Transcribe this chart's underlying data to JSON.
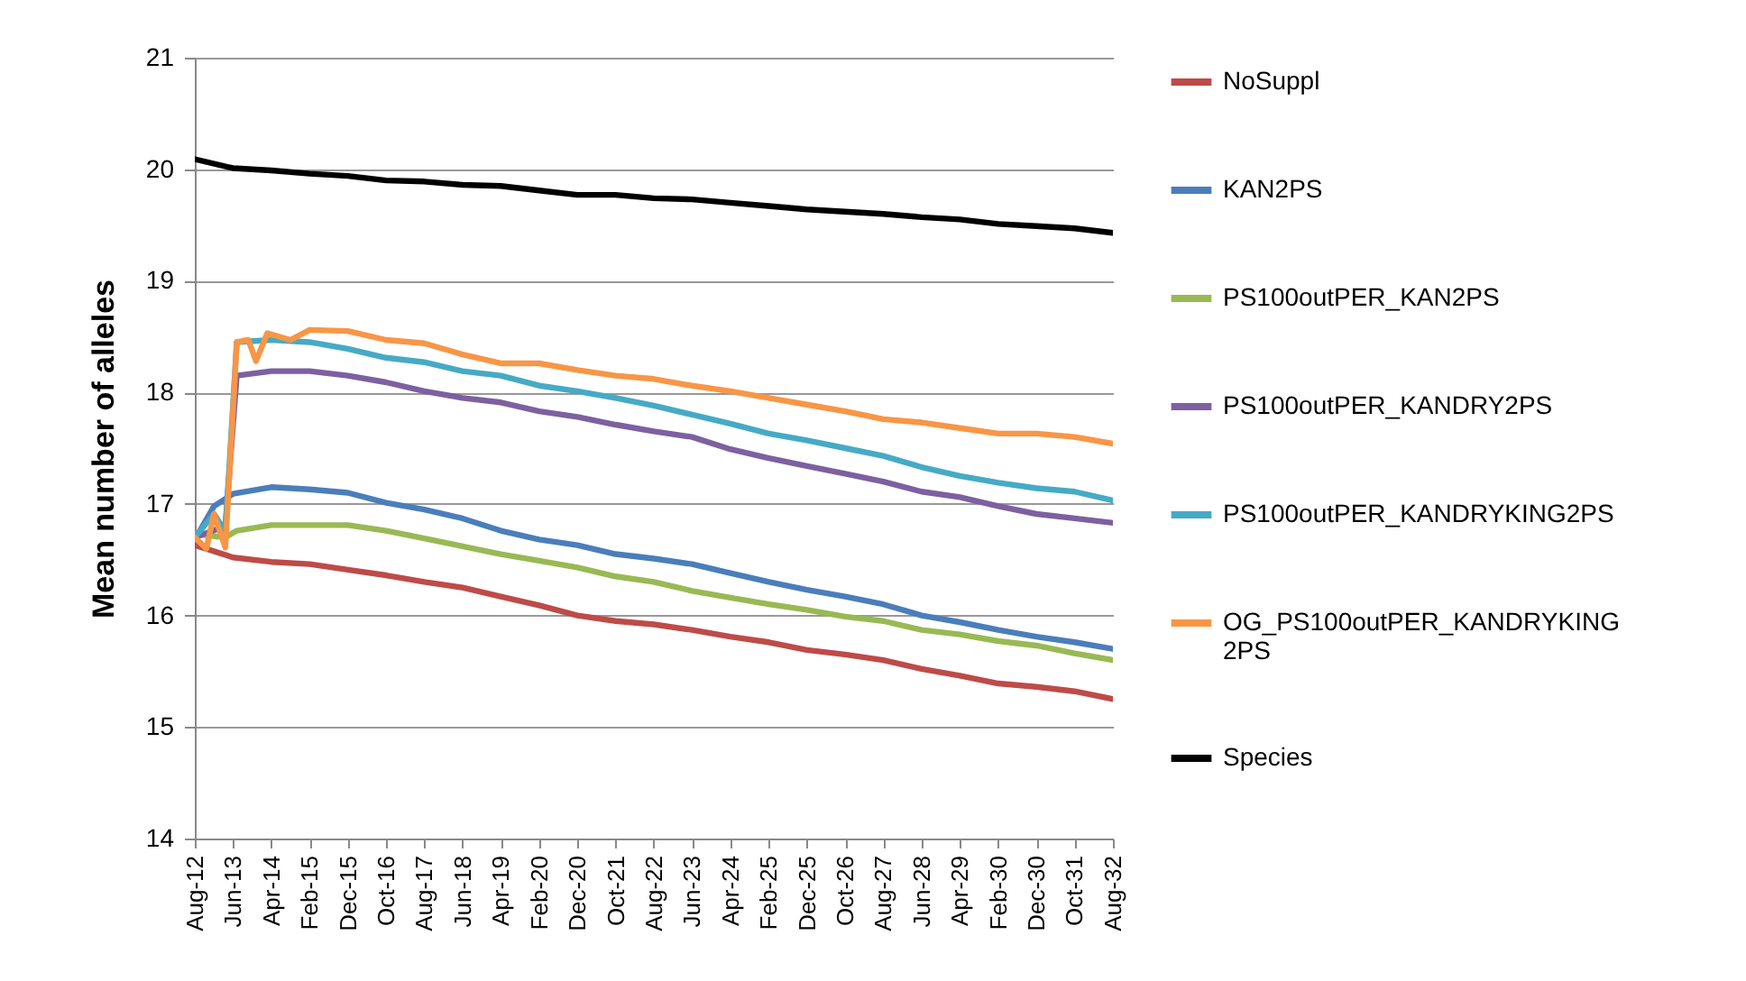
{
  "chart_data": {
    "type": "line",
    "ylabel": "Mean number of alleles",
    "ylim": [
      14,
      21
    ],
    "yticks": [
      14,
      15,
      16,
      17,
      18,
      19,
      20,
      21
    ],
    "xlim": [
      "2012-08",
      "2032-08"
    ],
    "xticks": [
      {
        "value": "2012-08",
        "label": "Aug-12"
      },
      {
        "value": "2013-06",
        "label": "Jun-13"
      },
      {
        "value": "2014-04",
        "label": "Apr-14"
      },
      {
        "value": "2015-02",
        "label": "Feb-15"
      },
      {
        "value": "2015-12",
        "label": "Dec-15"
      },
      {
        "value": "2016-10",
        "label": "Oct-16"
      },
      {
        "value": "2017-08",
        "label": "Aug-17"
      },
      {
        "value": "2018-06",
        "label": "Jun-18"
      },
      {
        "value": "2019-04",
        "label": "Apr-19"
      },
      {
        "value": "2020-02",
        "label": "Feb-20"
      },
      {
        "value": "2020-12",
        "label": "Dec-20"
      },
      {
        "value": "2021-10",
        "label": "Oct-21"
      },
      {
        "value": "2022-08",
        "label": "Aug-22"
      },
      {
        "value": "2023-06",
        "label": "Jun-23"
      },
      {
        "value": "2024-04",
        "label": "Apr-24"
      },
      {
        "value": "2025-02",
        "label": "Feb-25"
      },
      {
        "value": "2025-12",
        "label": "Dec-25"
      },
      {
        "value": "2026-10",
        "label": "Oct-26"
      },
      {
        "value": "2027-08",
        "label": "Aug-27"
      },
      {
        "value": "2028-06",
        "label": "Jun-28"
      },
      {
        "value": "2029-04",
        "label": "Apr-29"
      },
      {
        "value": "2030-02",
        "label": "Feb-30"
      },
      {
        "value": "2030-12",
        "label": "Dec-30"
      },
      {
        "value": "2031-10",
        "label": "Oct-31"
      },
      {
        "value": "2032-08",
        "label": "Aug-32"
      }
    ],
    "grid": "y",
    "legend": "right",
    "line_style": "solid",
    "series": [
      {
        "name": "NoSuppl",
        "color": "#be4b48",
        "x": [
          "2012-08",
          "2013-06",
          "2014-04",
          "2015-02",
          "2015-12",
          "2016-10",
          "2017-08",
          "2018-06",
          "2019-04",
          "2020-02",
          "2020-12",
          "2021-10",
          "2022-08",
          "2023-06",
          "2024-04",
          "2025-02",
          "2025-12",
          "2026-10",
          "2027-08",
          "2028-06",
          "2029-04",
          "2030-02",
          "2030-12",
          "2031-10",
          "2032-08"
        ],
        "values": [
          16.63,
          16.52,
          16.48,
          16.46,
          16.41,
          16.36,
          16.3,
          16.25,
          16.17,
          16.09,
          16.0,
          15.95,
          15.92,
          15.87,
          15.81,
          15.76,
          15.69,
          15.65,
          15.6,
          15.52,
          15.46,
          15.39,
          15.36,
          15.32,
          15.25
        ]
      },
      {
        "name": "KAN2PS",
        "color": "#4a7ebb",
        "x": [
          "2012-08",
          "2013-01",
          "2013-06",
          "2014-04",
          "2015-02",
          "2015-12",
          "2016-10",
          "2017-08",
          "2018-06",
          "2019-04",
          "2020-02",
          "2020-12",
          "2021-10",
          "2022-08",
          "2023-06",
          "2024-04",
          "2025-02",
          "2025-12",
          "2026-10",
          "2027-08",
          "2028-06",
          "2029-04",
          "2030-02",
          "2030-12",
          "2031-10",
          "2032-08"
        ],
        "values": [
          16.68,
          16.98,
          17.09,
          17.15,
          17.13,
          17.1,
          17.01,
          16.95,
          16.87,
          16.76,
          16.68,
          16.63,
          16.55,
          16.51,
          16.46,
          16.38,
          16.3,
          16.23,
          16.17,
          16.1,
          16.0,
          15.94,
          15.87,
          15.81,
          15.76,
          15.7
        ]
      },
      {
        "name": "PS100outPER_KAN2PS",
        "color": "#98b954",
        "x": [
          "2012-08",
          "2013-04",
          "2013-07",
          "2014-04",
          "2015-02",
          "2015-12",
          "2016-10",
          "2017-08",
          "2018-06",
          "2019-04",
          "2020-02",
          "2020-12",
          "2021-10",
          "2022-08",
          "2023-06",
          "2024-04",
          "2025-02",
          "2025-12",
          "2026-10",
          "2027-08",
          "2028-06",
          "2029-04",
          "2030-02",
          "2030-12",
          "2031-10",
          "2032-08"
        ],
        "values": [
          16.73,
          16.7,
          16.76,
          16.81,
          16.81,
          16.81,
          16.76,
          16.69,
          16.62,
          16.55,
          16.49,
          16.43,
          16.35,
          16.3,
          16.22,
          16.16,
          16.1,
          16.05,
          15.99,
          15.95,
          15.87,
          15.83,
          15.77,
          15.73,
          15.66,
          15.6
        ]
      },
      {
        "name": "PS100outPER_KANDRY2PS",
        "color": "#7d60a0",
        "x": [
          "2012-08",
          "2013-04",
          "2013-07",
          "2014-04",
          "2015-02",
          "2015-12",
          "2016-10",
          "2017-08",
          "2018-06",
          "2019-04",
          "2020-02",
          "2020-12",
          "2021-10",
          "2022-08",
          "2023-06",
          "2024-04",
          "2025-02",
          "2025-12",
          "2026-10",
          "2027-08",
          "2028-06",
          "2029-04",
          "2030-02",
          "2030-12",
          "2031-10",
          "2032-08"
        ],
        "values": [
          16.7,
          16.8,
          18.15,
          18.19,
          18.19,
          18.15,
          18.09,
          18.01,
          17.95,
          17.91,
          17.83,
          17.78,
          17.71,
          17.65,
          17.6,
          17.49,
          17.41,
          17.34,
          17.27,
          17.2,
          17.11,
          17.06,
          16.98,
          16.91,
          16.87,
          16.83
        ]
      },
      {
        "name": "PS100outPER_KANDRYKING2PS",
        "color": "#46aac5",
        "x": [
          "2012-08",
          "2013-01",
          "2013-04",
          "2013-07",
          "2014-04",
          "2015-02",
          "2015-12",
          "2016-10",
          "2017-08",
          "2018-06",
          "2019-04",
          "2020-02",
          "2020-12",
          "2021-10",
          "2022-08",
          "2023-06",
          "2024-04",
          "2025-02",
          "2025-12",
          "2026-10",
          "2027-08",
          "2028-06",
          "2029-04",
          "2030-02",
          "2030-12",
          "2031-10",
          "2032-08"
        ],
        "values": [
          16.7,
          16.91,
          16.75,
          18.45,
          18.47,
          18.45,
          18.39,
          18.31,
          18.27,
          18.19,
          18.15,
          18.06,
          18.01,
          17.95,
          17.88,
          17.8,
          17.72,
          17.63,
          17.57,
          17.5,
          17.43,
          17.33,
          17.25,
          17.19,
          17.14,
          17.11,
          17.03
        ]
      },
      {
        "name": "OG_PS100outPER_KANDRYKING2PS",
        "color": "#f79646",
        "x": [
          "2012-08",
          "2012-11",
          "2013-01",
          "2013-04",
          "2013-07",
          "2013-10",
          "2013-12",
          "2014-03",
          "2014-09",
          "2015-02",
          "2015-12",
          "2016-10",
          "2017-08",
          "2018-06",
          "2019-04",
          "2020-02",
          "2020-12",
          "2021-10",
          "2022-08",
          "2023-06",
          "2024-04",
          "2025-02",
          "2025-12",
          "2026-10",
          "2027-08",
          "2028-06",
          "2029-04",
          "2030-02",
          "2030-12",
          "2031-10",
          "2032-08"
        ],
        "values": [
          16.7,
          16.6,
          16.91,
          16.61,
          18.45,
          18.47,
          18.28,
          18.53,
          18.47,
          18.56,
          18.55,
          18.47,
          18.44,
          18.34,
          18.26,
          18.26,
          18.2,
          18.15,
          18.12,
          18.06,
          18.01,
          17.95,
          17.89,
          17.83,
          17.76,
          17.73,
          17.68,
          17.63,
          17.63,
          17.6,
          17.54
        ]
      },
      {
        "name": "Species",
        "color": "#000000",
        "x": [
          "2012-08",
          "2013-06",
          "2014-04",
          "2015-02",
          "2015-12",
          "2016-10",
          "2017-08",
          "2018-06",
          "2019-04",
          "2020-02",
          "2020-12",
          "2021-10",
          "2022-08",
          "2023-06",
          "2024-04",
          "2025-02",
          "2025-12",
          "2026-10",
          "2027-08",
          "2028-06",
          "2029-04",
          "2030-02",
          "2030-12",
          "2031-10",
          "2032-08"
        ],
        "values": [
          20.09,
          20.01,
          19.99,
          19.96,
          19.94,
          19.9,
          19.89,
          19.86,
          19.85,
          19.81,
          19.77,
          19.77,
          19.74,
          19.73,
          19.7,
          19.67,
          19.64,
          19.62,
          19.6,
          19.57,
          19.55,
          19.51,
          19.49,
          19.47,
          19.43
        ]
      }
    ]
  }
}
